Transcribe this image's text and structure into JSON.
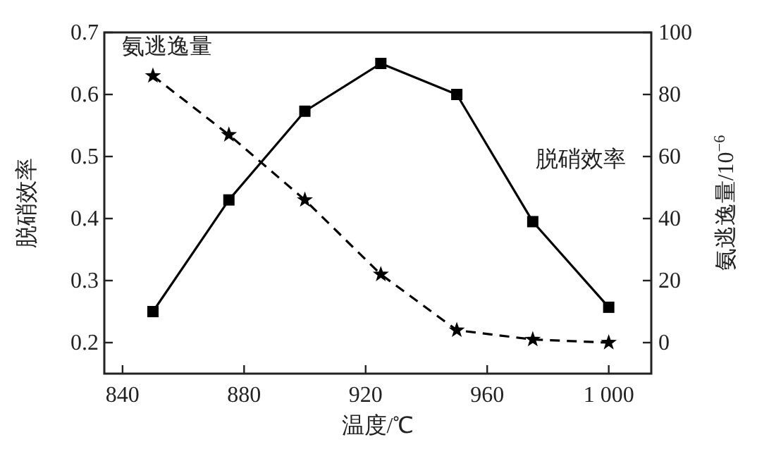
{
  "chart_data": {
    "type": "line",
    "xlabel": "温度/℃",
    "ylabel": "脱硝效率",
    "y2label": "氨逃逸量/10$^{−6}$",
    "x": [
      850,
      875,
      900,
      925,
      950,
      975,
      1000
    ],
    "series": [
      {
        "name": "脱硝效率",
        "color": "#000000",
        "marker": "square",
        "line_style": "solid",
        "values": [
          0.25,
          0.43,
          0.573,
          0.65,
          0.6,
          0.395,
          0.257
        ]
      },
      {
        "name": "氨逃逸量",
        "color": "#000000",
        "marker": "star",
        "line_style": "dashed",
        "axis": "y2",
        "values": [
          86,
          67,
          46,
          22,
          4,
          1,
          0
        ]
      }
    ],
    "xlim": [
      834,
      1014
    ],
    "xticks": [
      840,
      880,
      920,
      960,
      {
        "value": 1000,
        "label": "1 000"
      }
    ],
    "ylim": [
      0.15,
      0.7
    ],
    "yticks": [
      0.2,
      0.3,
      0.4,
      0.5,
      0.6,
      0.7
    ],
    "y2lim": [
      -10,
      100
    ],
    "y2ticks": [
      0,
      20,
      40,
      60,
      80,
      100
    ]
  }
}
